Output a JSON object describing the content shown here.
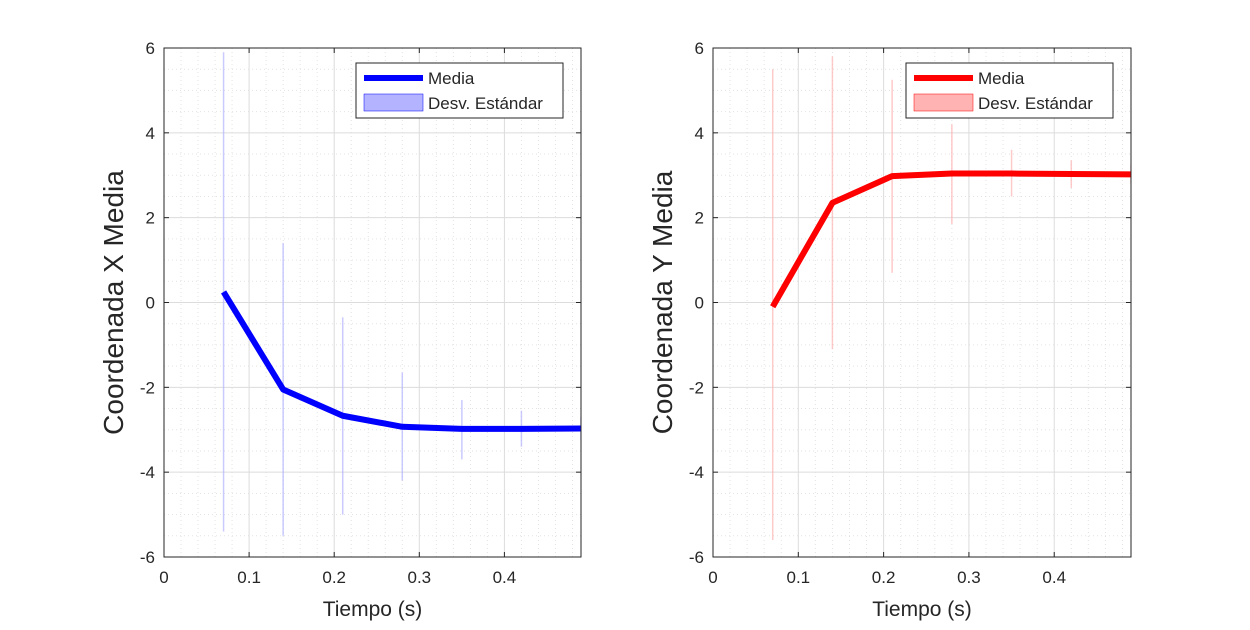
{
  "chart_data": [
    {
      "type": "line",
      "xlabel": "Tiempo (s)",
      "ylabel": "Coordenada X Media",
      "xlim": [
        0,
        0.49
      ],
      "ylim": [
        -6,
        6
      ],
      "xticks": [
        0,
        0.1,
        0.2,
        0.3,
        0.4
      ],
      "xtick_labels": [
        "0",
        "0.1",
        "0.2",
        "0.3",
        "0.4"
      ],
      "yticks": [
        -6,
        -4,
        -2,
        0,
        2,
        4,
        6
      ],
      "ytick_labels": [
        "-6",
        "-4",
        "-2",
        "0",
        "2",
        "4",
        "6"
      ],
      "grid": true,
      "minor_grid": true,
      "legend_position": "top-right",
      "color": "#0000ff",
      "band_color": "#b3b3ff",
      "series": [
        {
          "name": "Media",
          "x": [
            0.07,
            0.14,
            0.21,
            0.28,
            0.35,
            0.42,
            0.49
          ],
          "values": [
            0.25,
            -2.05,
            -2.67,
            -2.93,
            -2.98,
            -2.98,
            -2.97
          ]
        },
        {
          "name": "Desv. Estándar",
          "x": [
            0.07,
            0.14,
            0.21,
            0.28,
            0.35,
            0.42,
            0.49
          ],
          "lower": [
            -5.4,
            -5.5,
            -5.0,
            -4.2,
            -3.7,
            -3.4,
            -3.25
          ],
          "upper": [
            5.9,
            1.4,
            -0.35,
            -1.65,
            -2.3,
            -2.55,
            -2.7
          ]
        }
      ],
      "legend": [
        "Media",
        "Desv. Estándar"
      ]
    },
    {
      "type": "line",
      "xlabel": "Tiempo (s)",
      "ylabel": "Coordenada Y Media",
      "xlim": [
        0,
        0.49
      ],
      "ylim": [
        -6,
        6
      ],
      "xticks": [
        0,
        0.1,
        0.2,
        0.3,
        0.4
      ],
      "xtick_labels": [
        "0",
        "0.1",
        "0.2",
        "0.3",
        "0.4"
      ],
      "yticks": [
        -6,
        -4,
        -2,
        0,
        2,
        4,
        6
      ],
      "ytick_labels": [
        "-6",
        "-4",
        "-2",
        "0",
        "2",
        "4",
        "6"
      ],
      "grid": true,
      "minor_grid": true,
      "legend_position": "top-right",
      "color": "#ff0000",
      "band_color": "#ffb3b3",
      "series": [
        {
          "name": "Media",
          "x": [
            0.07,
            0.14,
            0.21,
            0.28,
            0.35,
            0.42,
            0.49
          ],
          "values": [
            -0.1,
            2.35,
            2.98,
            3.04,
            3.04,
            3.03,
            3.02
          ]
        },
        {
          "name": "Desv. Estándar",
          "x": [
            0.07,
            0.14,
            0.21,
            0.28,
            0.35,
            0.42,
            0.49
          ],
          "lower": [
            -5.6,
            -1.1,
            0.7,
            1.85,
            2.5,
            2.7,
            2.8
          ],
          "upper": [
            5.5,
            5.8,
            5.25,
            4.2,
            3.6,
            3.35,
            3.25
          ]
        }
      ],
      "legend": [
        "Media",
        "Desv. Estándar"
      ]
    }
  ]
}
